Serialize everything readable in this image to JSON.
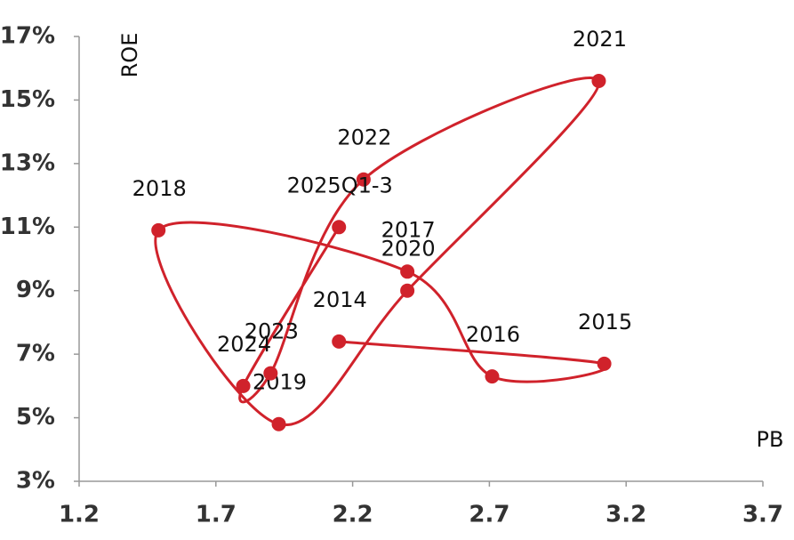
{
  "chart_data": {
    "type": "connected-scatter",
    "x_label": "PB",
    "y_label": "ROE",
    "color": "#d0222b",
    "xlim": [
      1.2,
      3.7
    ],
    "xticks": [
      1.2,
      1.7,
      2.2,
      2.7,
      3.2,
      3.7
    ],
    "ylim": [
      3,
      17
    ],
    "yticks": [
      {
        "value": 3,
        "label": "3%"
      },
      {
        "value": 5,
        "label": "5%"
      },
      {
        "value": 7,
        "label": "7%"
      },
      {
        "value": 9,
        "label": "9%"
      },
      {
        "value": 11,
        "label": "11%"
      },
      {
        "value": 13,
        "label": "13%"
      },
      {
        "value": 15,
        "label": "15%"
      },
      {
        "value": 17,
        "label": "17%"
      }
    ],
    "point_labels": [
      "2014",
      "2015",
      "2016",
      "2017",
      "2018",
      "2019",
      "2020",
      "2021",
      "2022",
      "2023",
      "2024",
      "2025Q1-3"
    ],
    "x": [
      2.15,
      3.12,
      2.71,
      2.4,
      1.49,
      1.93,
      2.4,
      3.1,
      2.24,
      1.9,
      1.8,
      2.15
    ],
    "values": [
      7.4,
      6.7,
      6.3,
      9.6,
      10.9,
      4.8,
      9.0,
      15.6,
      12.5,
      6.4,
      6.0,
      11.0
    ]
  }
}
